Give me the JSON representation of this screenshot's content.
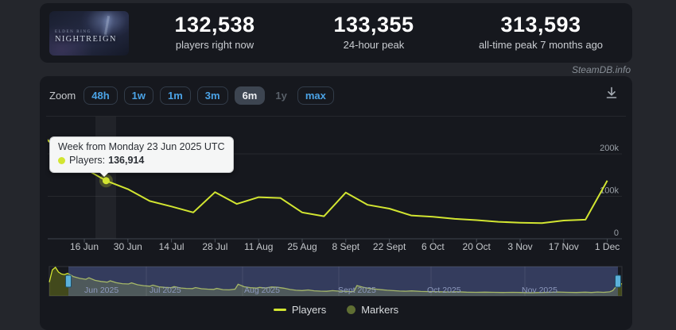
{
  "page": {
    "watermark": "SteamDB.info"
  },
  "header": {
    "banner": {
      "title_top": "ELDEN RING",
      "title_main": "NIGHTREIGN"
    },
    "stats": [
      {
        "value": "132,538",
        "label": "players right now"
      },
      {
        "value": "133,355",
        "label": "24-hour peak"
      },
      {
        "value": "313,593",
        "label": "all-time peak 7 months ago"
      }
    ]
  },
  "toolbar": {
    "zoom_label": "Zoom",
    "buttons": [
      {
        "label": "48h",
        "state": "normal"
      },
      {
        "label": "1w",
        "state": "normal"
      },
      {
        "label": "1m",
        "state": "normal"
      },
      {
        "label": "3m",
        "state": "normal"
      },
      {
        "label": "6m",
        "state": "selected"
      },
      {
        "label": "1y",
        "state": "disabled"
      },
      {
        "label": "max",
        "state": "normal"
      }
    ]
  },
  "tooltip": {
    "title": "Week from Monday 23 Jun 2025 UTC",
    "series": "Players:",
    "value": "136,914"
  },
  "colors": {
    "accent_line": "#d2e531",
    "marker_olive": "#5f6e33",
    "link_blue": "#4ba3e6",
    "tooltip_bg": "#f5f6f6",
    "grid": "rgba(255,255,255,0.07)",
    "axis": "#3f454d",
    "tick_label": "#c3c6ca",
    "y_label": "#9aa0a7",
    "navigator_selection": "rgba(98,116,188,0.40)",
    "navigator_area": "#4a521c",
    "navigator_handle": "#5bb1da",
    "navigator_label": "#8d99bd"
  },
  "chart_data": {
    "type": "line",
    "title": "",
    "xlabel": "",
    "ylabel": "",
    "ylim": [
      0,
      220000
    ],
    "yticks": [
      {
        "label": "200k",
        "value": 200000
      },
      {
        "label": "100k",
        "value": 100000
      },
      {
        "label": "0",
        "value": 0
      }
    ],
    "xticks": [
      "16 Jun",
      "30 Jun",
      "14 Jul",
      "28 Jul",
      "11 Aug",
      "25 Aug",
      "8 Sept",
      "22 Sept",
      "6 Oct",
      "20 Oct",
      "3 Nov",
      "17 Nov",
      "1 Dec"
    ],
    "series": [
      {
        "name": "Players",
        "color": "#d2e531",
        "x": [
          "2 Jun",
          "9 Jun",
          "16 Jun",
          "23 Jun",
          "30 Jun",
          "7 Jul",
          "14 Jul",
          "21 Jul",
          "28 Jul",
          "4 Aug",
          "11 Aug",
          "18 Aug",
          "25 Aug",
          "1 Sep",
          "8 Sep",
          "15 Sep",
          "22 Sep",
          "29 Sep",
          "6 Oct",
          "13 Oct",
          "20 Oct",
          "27 Oct",
          "3 Nov",
          "10 Nov",
          "17 Nov",
          "24 Nov",
          "1 Dec"
        ],
        "values": [
          250000,
          196000,
          166000,
          136914,
          117000,
          89000,
          76000,
          62000,
          110000,
          82000,
          98000,
          96000,
          62000,
          53000,
          109000,
          80000,
          71000,
          55000,
          52000,
          47000,
          44000,
          40000,
          38000,
          37000,
          43000,
          45000,
          137000
        ]
      }
    ],
    "highlighted_point": {
      "x": "23 Jun",
      "value": 136914,
      "index": 3
    },
    "legend_position": "bottom",
    "grid": true,
    "legend": [
      {
        "label": "Players",
        "swatch": "line",
        "color": "#d2e531"
      },
      {
        "label": "Markers",
        "swatch": "circle",
        "color": "#5f6e33"
      }
    ],
    "navigator": {
      "months": [
        "Jun 2025",
        "Jul 2025",
        "Aug 2025",
        "Sept 2025",
        "Oct 2025",
        "Nov 2025"
      ],
      "range_days": 188,
      "max_value_k": 313,
      "points_day_valuek": [
        [
          0,
          150
        ],
        [
          1,
          285
        ],
        [
          2,
          313
        ],
        [
          3,
          262
        ],
        [
          4,
          240
        ],
        [
          5,
          234
        ],
        [
          6,
          247
        ],
        [
          8,
          210
        ],
        [
          10,
          192
        ],
        [
          12,
          182
        ],
        [
          13,
          198
        ],
        [
          15,
          170
        ],
        [
          17,
          158
        ],
        [
          19,
          150
        ],
        [
          20,
          165
        ],
        [
          22,
          144
        ],
        [
          24,
          134
        ],
        [
          26,
          130
        ],
        [
          27,
          143
        ],
        [
          29,
          122
        ],
        [
          31,
          112
        ],
        [
          33,
          106
        ],
        [
          34,
          118
        ],
        [
          36,
          99
        ],
        [
          38,
          93
        ],
        [
          40,
          90
        ],
        [
          41,
          102
        ],
        [
          43,
          87
        ],
        [
          45,
          82
        ],
        [
          47,
          80
        ],
        [
          48,
          91
        ],
        [
          50,
          78
        ],
        [
          52,
          74
        ],
        [
          54,
          71
        ],
        [
          55,
          82
        ],
        [
          57,
          69
        ],
        [
          59,
          66
        ],
        [
          61,
          74
        ],
        [
          62,
          128
        ],
        [
          64,
          100
        ],
        [
          66,
          90
        ],
        [
          68,
          85
        ],
        [
          69,
          93
        ],
        [
          71,
          87
        ],
        [
          73,
          97
        ],
        [
          75,
          94
        ],
        [
          77,
          84
        ],
        [
          79,
          70
        ],
        [
          81,
          62
        ],
        [
          83,
          58
        ],
        [
          85,
          65
        ],
        [
          87,
          56
        ],
        [
          89,
          52
        ],
        [
          91,
          50
        ],
        [
          93,
          57
        ],
        [
          95,
          52
        ],
        [
          98,
          49
        ],
        [
          100,
          47
        ],
        [
          101,
          113
        ],
        [
          103,
          95
        ],
        [
          105,
          83
        ],
        [
          107,
          75
        ],
        [
          109,
          68
        ],
        [
          111,
          62
        ],
        [
          113,
          57
        ],
        [
          115,
          53
        ],
        [
          117,
          51
        ],
        [
          119,
          55
        ],
        [
          122,
          49
        ],
        [
          125,
          47
        ],
        [
          128,
          45
        ],
        [
          131,
          43
        ],
        [
          134,
          45
        ],
        [
          137,
          41
        ],
        [
          140,
          39
        ],
        [
          143,
          41
        ],
        [
          146,
          39
        ],
        [
          149,
          37
        ],
        [
          152,
          39
        ],
        [
          155,
          37
        ],
        [
          158,
          35
        ],
        [
          161,
          37
        ],
        [
          164,
          39
        ],
        [
          167,
          43
        ],
        [
          170,
          39
        ],
        [
          173,
          37
        ],
        [
          176,
          41
        ],
        [
          178,
          37
        ],
        [
          180,
          43
        ],
        [
          182,
          39
        ],
        [
          184,
          44
        ],
        [
          185,
          58
        ],
        [
          186,
          98
        ],
        [
          187,
          137
        ],
        [
          188,
          130
        ]
      ]
    }
  }
}
